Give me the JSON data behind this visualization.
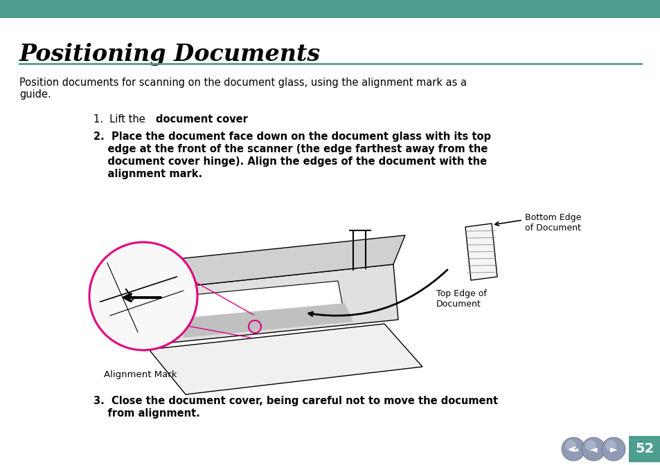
{
  "title": "Positioning Documents",
  "teal_color": "#4d9e8e",
  "intro_text": "Position documents for scanning on the document glass, using the alignment mark as a\nguide.",
  "label_alignment_mark": "Alignment Mark",
  "label_top_edge": "Top Edge of\nDocument",
  "label_bottom_edge": "Bottom Edge\nof Document",
  "page_number": "52",
  "bg_color": "#ffffff",
  "text_color": "#000000",
  "magenta_color": "#e0007f",
  "nav_circle_color": "#8090b0"
}
